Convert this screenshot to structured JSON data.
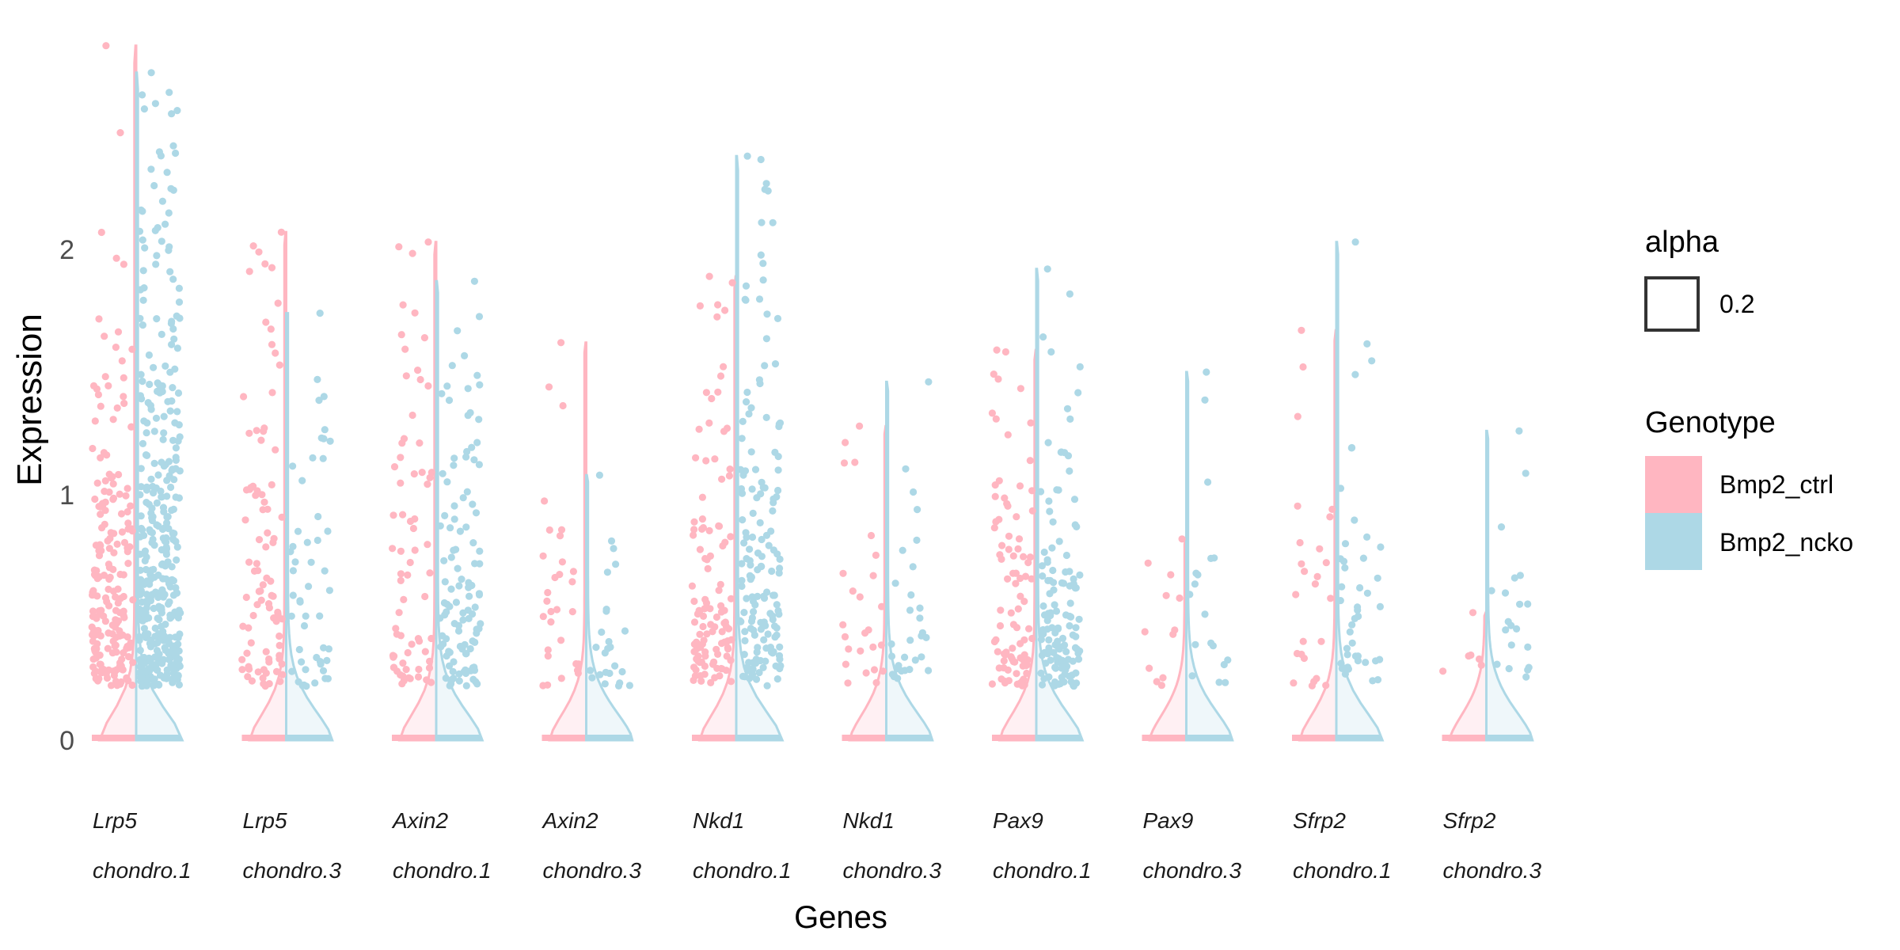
{
  "chart_data": {
    "type": "violin",
    "xlabel": "Genes",
    "ylabel": "Expression",
    "ylim": [
      0,
      2.85
    ],
    "y_ticks": [
      0,
      1,
      2
    ],
    "y_tick_labels": [
      "0",
      "1",
      "2"
    ],
    "grid": false,
    "legend_placement": "right",
    "colors": {
      "Bmp2_ctrl": "#FFB6C1",
      "Bmp2_ncko": "#ADD8E6"
    },
    "categories": [
      {
        "gene": "Lrp5",
        "cluster": "chondro.1",
        "max": {
          "Bmp2_ctrl": 2.83,
          "Bmp2_ncko": 2.72
        },
        "n": {
          "Bmp2_ctrl": 200,
          "Bmp2_ncko": 380
        },
        "center": {
          "Bmp2_ctrl": 0.8,
          "Bmp2_ncko": 0.9
        }
      },
      {
        "gene": "Lrp5",
        "cluster": "chondro.3",
        "max": {
          "Bmp2_ctrl": 2.07,
          "Bmp2_ncko": 1.74
        },
        "n": {
          "Bmp2_ctrl": 90,
          "Bmp2_ncko": 50
        },
        "center": {
          "Bmp2_ctrl": 0.8,
          "Bmp2_ncko": 0.7
        }
      },
      {
        "gene": "Axin2",
        "cluster": "chondro.1",
        "max": {
          "Bmp2_ctrl": 2.03,
          "Bmp2_ncko": 1.87
        },
        "n": {
          "Bmp2_ctrl": 70,
          "Bmp2_ncko": 110
        },
        "center": {
          "Bmp2_ctrl": 0.75,
          "Bmp2_ncko": 0.75
        }
      },
      {
        "gene": "Axin2",
        "cluster": "chondro.3",
        "max": {
          "Bmp2_ctrl": 1.62,
          "Bmp2_ncko": 1.08
        },
        "n": {
          "Bmp2_ctrl": 30,
          "Bmp2_ncko": 25
        },
        "center": {
          "Bmp2_ctrl": 0.6,
          "Bmp2_ncko": 0.5
        }
      },
      {
        "gene": "Nkd1",
        "cluster": "chondro.1",
        "max": {
          "Bmp2_ctrl": 1.89,
          "Bmp2_ncko": 2.38
        },
        "n": {
          "Bmp2_ctrl": 110,
          "Bmp2_ncko": 160
        },
        "center": {
          "Bmp2_ctrl": 0.75,
          "Bmp2_ncko": 0.75
        }
      },
      {
        "gene": "Nkd1",
        "cluster": "chondro.3",
        "max": {
          "Bmp2_ctrl": 1.28,
          "Bmp2_ncko": 1.46
        },
        "n": {
          "Bmp2_ctrl": 25,
          "Bmp2_ncko": 30
        },
        "center": {
          "Bmp2_ctrl": 0.6,
          "Bmp2_ncko": 0.55
        }
      },
      {
        "gene": "Pax9",
        "cluster": "chondro.1",
        "max": {
          "Bmp2_ctrl": 1.59,
          "Bmp2_ncko": 1.92
        },
        "n": {
          "Bmp2_ctrl": 90,
          "Bmp2_ncko": 130
        },
        "center": {
          "Bmp2_ctrl": 0.7,
          "Bmp2_ncko": 0.6
        }
      },
      {
        "gene": "Pax9",
        "cluster": "chondro.3",
        "max": {
          "Bmp2_ctrl": 0.82,
          "Bmp2_ncko": 1.5
        },
        "n": {
          "Bmp2_ctrl": 12,
          "Bmp2_ncko": 18
        },
        "center": {
          "Bmp2_ctrl": 0.55,
          "Bmp2_ncko": 0.5
        }
      },
      {
        "gene": "Sfrp2",
        "cluster": "chondro.1",
        "max": {
          "Bmp2_ctrl": 1.67,
          "Bmp2_ncko": 2.03
        },
        "n": {
          "Bmp2_ctrl": 25,
          "Bmp2_ncko": 45
        },
        "center": {
          "Bmp2_ctrl": 0.6,
          "Bmp2_ncko": 0.55
        }
      },
      {
        "gene": "Sfrp2",
        "cluster": "chondro.3",
        "max": {
          "Bmp2_ctrl": 0.52,
          "Bmp2_ncko": 1.26
        },
        "n": {
          "Bmp2_ctrl": 6,
          "Bmp2_ncko": 20
        },
        "center": {
          "Bmp2_ctrl": 0.35,
          "Bmp2_ncko": 0.5
        }
      }
    ]
  },
  "legend": {
    "alpha": {
      "title": "alpha",
      "label": "0.2"
    },
    "genotype": {
      "title": "Genotype",
      "items": [
        {
          "label": "Bmp2_ctrl",
          "color": "#FFB6C1"
        },
        {
          "label": "Bmp2_ncko",
          "color": "#ADD8E6"
        }
      ]
    }
  }
}
